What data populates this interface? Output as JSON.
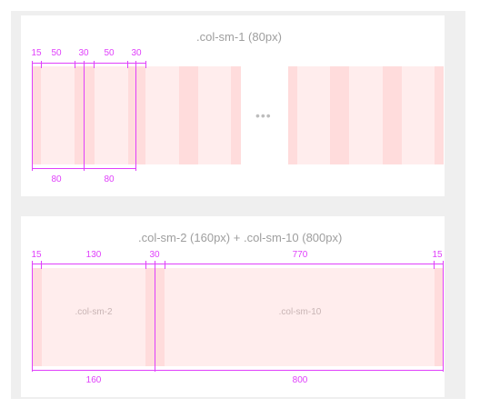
{
  "diagram1": {
    "title": ".col-sm-1 (80px)",
    "top_labels": [
      "15",
      "50",
      "30",
      "50",
      "30"
    ],
    "bottom_labels": [
      "80",
      "80"
    ],
    "ellipsis": "•••"
  },
  "diagram2": {
    "title": ".col-sm-2 (160px) + .col-sm-10 (800px)",
    "top_labels": [
      "15",
      "130",
      "30",
      "770",
      "15"
    ],
    "bottom_labels": [
      "160",
      "800"
    ],
    "col_labels": [
      ".col-sm-2",
      ".col-sm-10"
    ]
  },
  "colors": {
    "gutter": "#ffdcdc",
    "column": "#ffeded",
    "marker": "#e040fb",
    "title": "#9e9e9e"
  }
}
